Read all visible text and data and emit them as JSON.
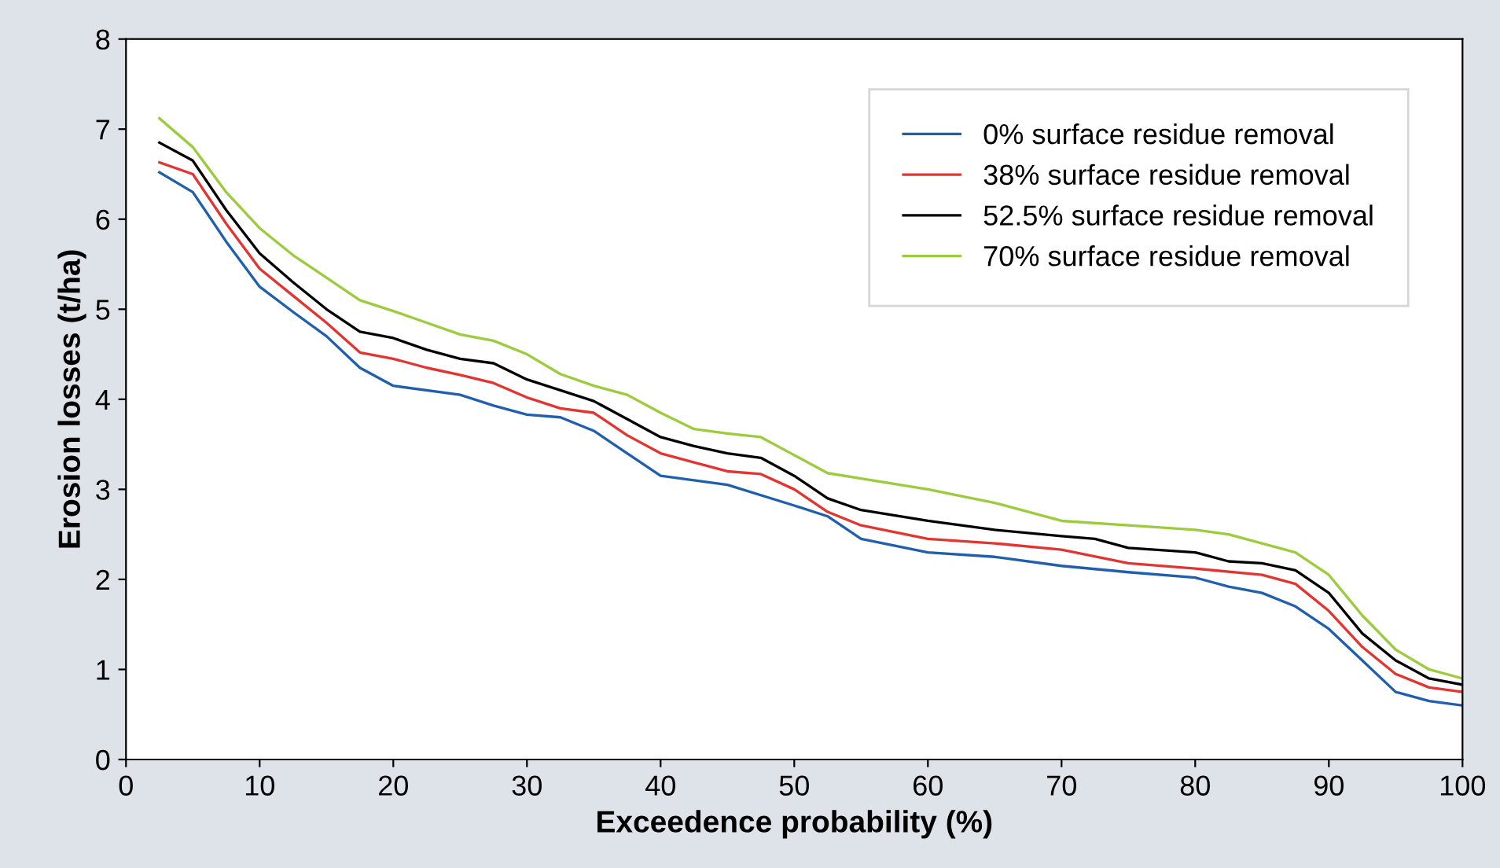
{
  "chart_data": {
    "type": "line",
    "xlabel": "Exceedence probability (%)",
    "ylabel": "Erosion losses (t/ha)",
    "xlim": [
      0,
      100
    ],
    "ylim": [
      0,
      8
    ],
    "xticks": [
      0,
      10,
      20,
      30,
      40,
      50,
      60,
      70,
      80,
      90,
      100
    ],
    "yticks": [
      0,
      1,
      2,
      3,
      4,
      5,
      6,
      7,
      8
    ],
    "grid": false,
    "legend": "top right",
    "marker": "none",
    "line_style": "solid",
    "series": [
      {
        "name": "0% surface residue removal",
        "color": "#1f5fae",
        "x": [
          2.5,
          5,
          7.5,
          10,
          12.5,
          15,
          17.5,
          20,
          25,
          27.5,
          30,
          32.5,
          35,
          37.5,
          40,
          45,
          50,
          52.5,
          55,
          60,
          65,
          70,
          75,
          80,
          82.5,
          85,
          87.5,
          90,
          92.5,
          95,
          97.5,
          100
        ],
        "values": [
          6.52,
          6.3,
          5.75,
          5.25,
          4.97,
          4.7,
          4.35,
          4.15,
          4.05,
          3.93,
          3.83,
          3.8,
          3.65,
          3.4,
          3.15,
          3.05,
          2.82,
          2.7,
          2.45,
          2.3,
          2.25,
          2.15,
          2.08,
          2.02,
          1.92,
          1.85,
          1.7,
          1.45,
          1.1,
          0.75,
          0.65,
          0.6
        ]
      },
      {
        "name": "38% surface residue removal",
        "color": "#e3342f",
        "x": [
          2.5,
          5,
          7.5,
          10,
          12.5,
          15,
          17.5,
          20,
          22.5,
          25,
          27.5,
          30,
          32.5,
          35,
          37.5,
          40,
          42.5,
          45,
          47.5,
          50,
          52.5,
          55,
          60,
          65,
          70,
          75,
          80,
          85,
          87.5,
          90,
          92.5,
          95,
          97.5,
          100
        ],
        "values": [
          6.63,
          6.5,
          5.95,
          5.45,
          5.15,
          4.85,
          4.52,
          4.45,
          4.35,
          4.27,
          4.18,
          4.02,
          3.9,
          3.85,
          3.6,
          3.4,
          3.3,
          3.2,
          3.17,
          3.0,
          2.75,
          2.6,
          2.45,
          2.4,
          2.33,
          2.18,
          2.12,
          2.05,
          1.95,
          1.65,
          1.25,
          0.95,
          0.8,
          0.75
        ]
      },
      {
        "name": "52.5% surface residue removal",
        "color": "#000000",
        "x": [
          2.5,
          5,
          7.5,
          10,
          12.5,
          15,
          17.5,
          20,
          22.5,
          25,
          27.5,
          30,
          32.5,
          35,
          37.5,
          40,
          42.5,
          45,
          47.5,
          50,
          52.5,
          55,
          60,
          65,
          70,
          72.5,
          75,
          80,
          82.5,
          85,
          87.5,
          90,
          92.5,
          95,
          97.5,
          100
        ],
        "values": [
          6.85,
          6.65,
          6.1,
          5.62,
          5.3,
          5.0,
          4.75,
          4.68,
          4.55,
          4.45,
          4.4,
          4.22,
          4.1,
          3.98,
          3.78,
          3.58,
          3.48,
          3.4,
          3.35,
          3.15,
          2.9,
          2.77,
          2.65,
          2.55,
          2.48,
          2.45,
          2.35,
          2.3,
          2.2,
          2.18,
          2.1,
          1.85,
          1.4,
          1.1,
          0.9,
          0.83
        ]
      },
      {
        "name": "70% surface residue removal",
        "color": "#9ccc3c",
        "x": [
          2.5,
          5,
          7.5,
          10,
          12.5,
          15,
          17.5,
          20,
          22.5,
          25,
          27.5,
          30,
          32.5,
          35,
          37.5,
          40,
          42.5,
          45,
          47.5,
          50,
          52.5,
          55,
          60,
          65,
          70,
          75,
          80,
          82.5,
          85,
          87.5,
          90,
          92.5,
          95,
          97.5,
          100
        ],
        "values": [
          7.12,
          6.8,
          6.3,
          5.9,
          5.6,
          5.35,
          5.1,
          4.98,
          4.85,
          4.72,
          4.65,
          4.5,
          4.28,
          4.15,
          4.05,
          3.85,
          3.67,
          3.62,
          3.58,
          3.38,
          3.18,
          3.12,
          3.0,
          2.85,
          2.65,
          2.6,
          2.55,
          2.5,
          2.4,
          2.3,
          2.05,
          1.6,
          1.22,
          1.0,
          0.9
        ]
      }
    ]
  }
}
